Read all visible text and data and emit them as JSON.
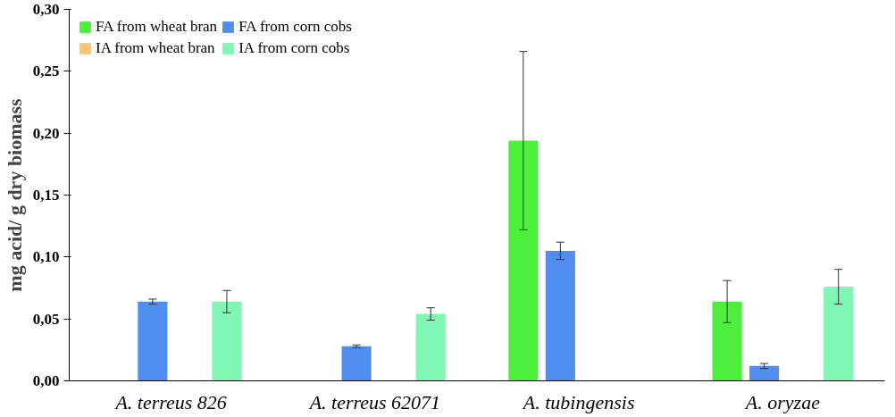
{
  "chart_data": {
    "type": "bar",
    "ylabel": "mg acid/ g dry biomass",
    "categories": [
      "A. terreus 826",
      "A. terreus 62071",
      "A. tubingensis",
      "A. oryzae"
    ],
    "series": [
      {
        "name": "FA from wheat bran",
        "color": "#4cf03c",
        "values": [
          null,
          null,
          0.194,
          0.064
        ],
        "errors": [
          null,
          null,
          0.072,
          0.017
        ]
      },
      {
        "name": "FA from corn cobs",
        "color": "#4f8ef0",
        "values": [
          0.064,
          0.028,
          0.105,
          0.012
        ],
        "errors": [
          0.002,
          0.001,
          0.007,
          0.002
        ]
      },
      {
        "name": "IA from wheat bran",
        "color": "#f8c478",
        "values": [
          null,
          null,
          null,
          null
        ],
        "errors": [
          null,
          null,
          null,
          null
        ]
      },
      {
        "name": "IA from corn cobs",
        "color": "#80f7b2",
        "values": [
          0.064,
          0.054,
          null,
          0.076
        ],
        "errors": [
          0.009,
          0.005,
          null,
          0.014
        ]
      }
    ],
    "ylim": [
      0,
      0.3
    ],
    "yticks": [
      {
        "value": 0,
        "label": "0,00"
      },
      {
        "value": 0.05,
        "label": "0,05"
      },
      {
        "value": 0.1,
        "label": "0,10"
      },
      {
        "value": 0.15,
        "label": "0,15"
      },
      {
        "value": 0.2,
        "label": "0,20"
      },
      {
        "value": 0.25,
        "label": "0,25"
      },
      {
        "value": 0.3,
        "label": "0,30"
      }
    ],
    "grid": false,
    "legend": "top left"
  }
}
